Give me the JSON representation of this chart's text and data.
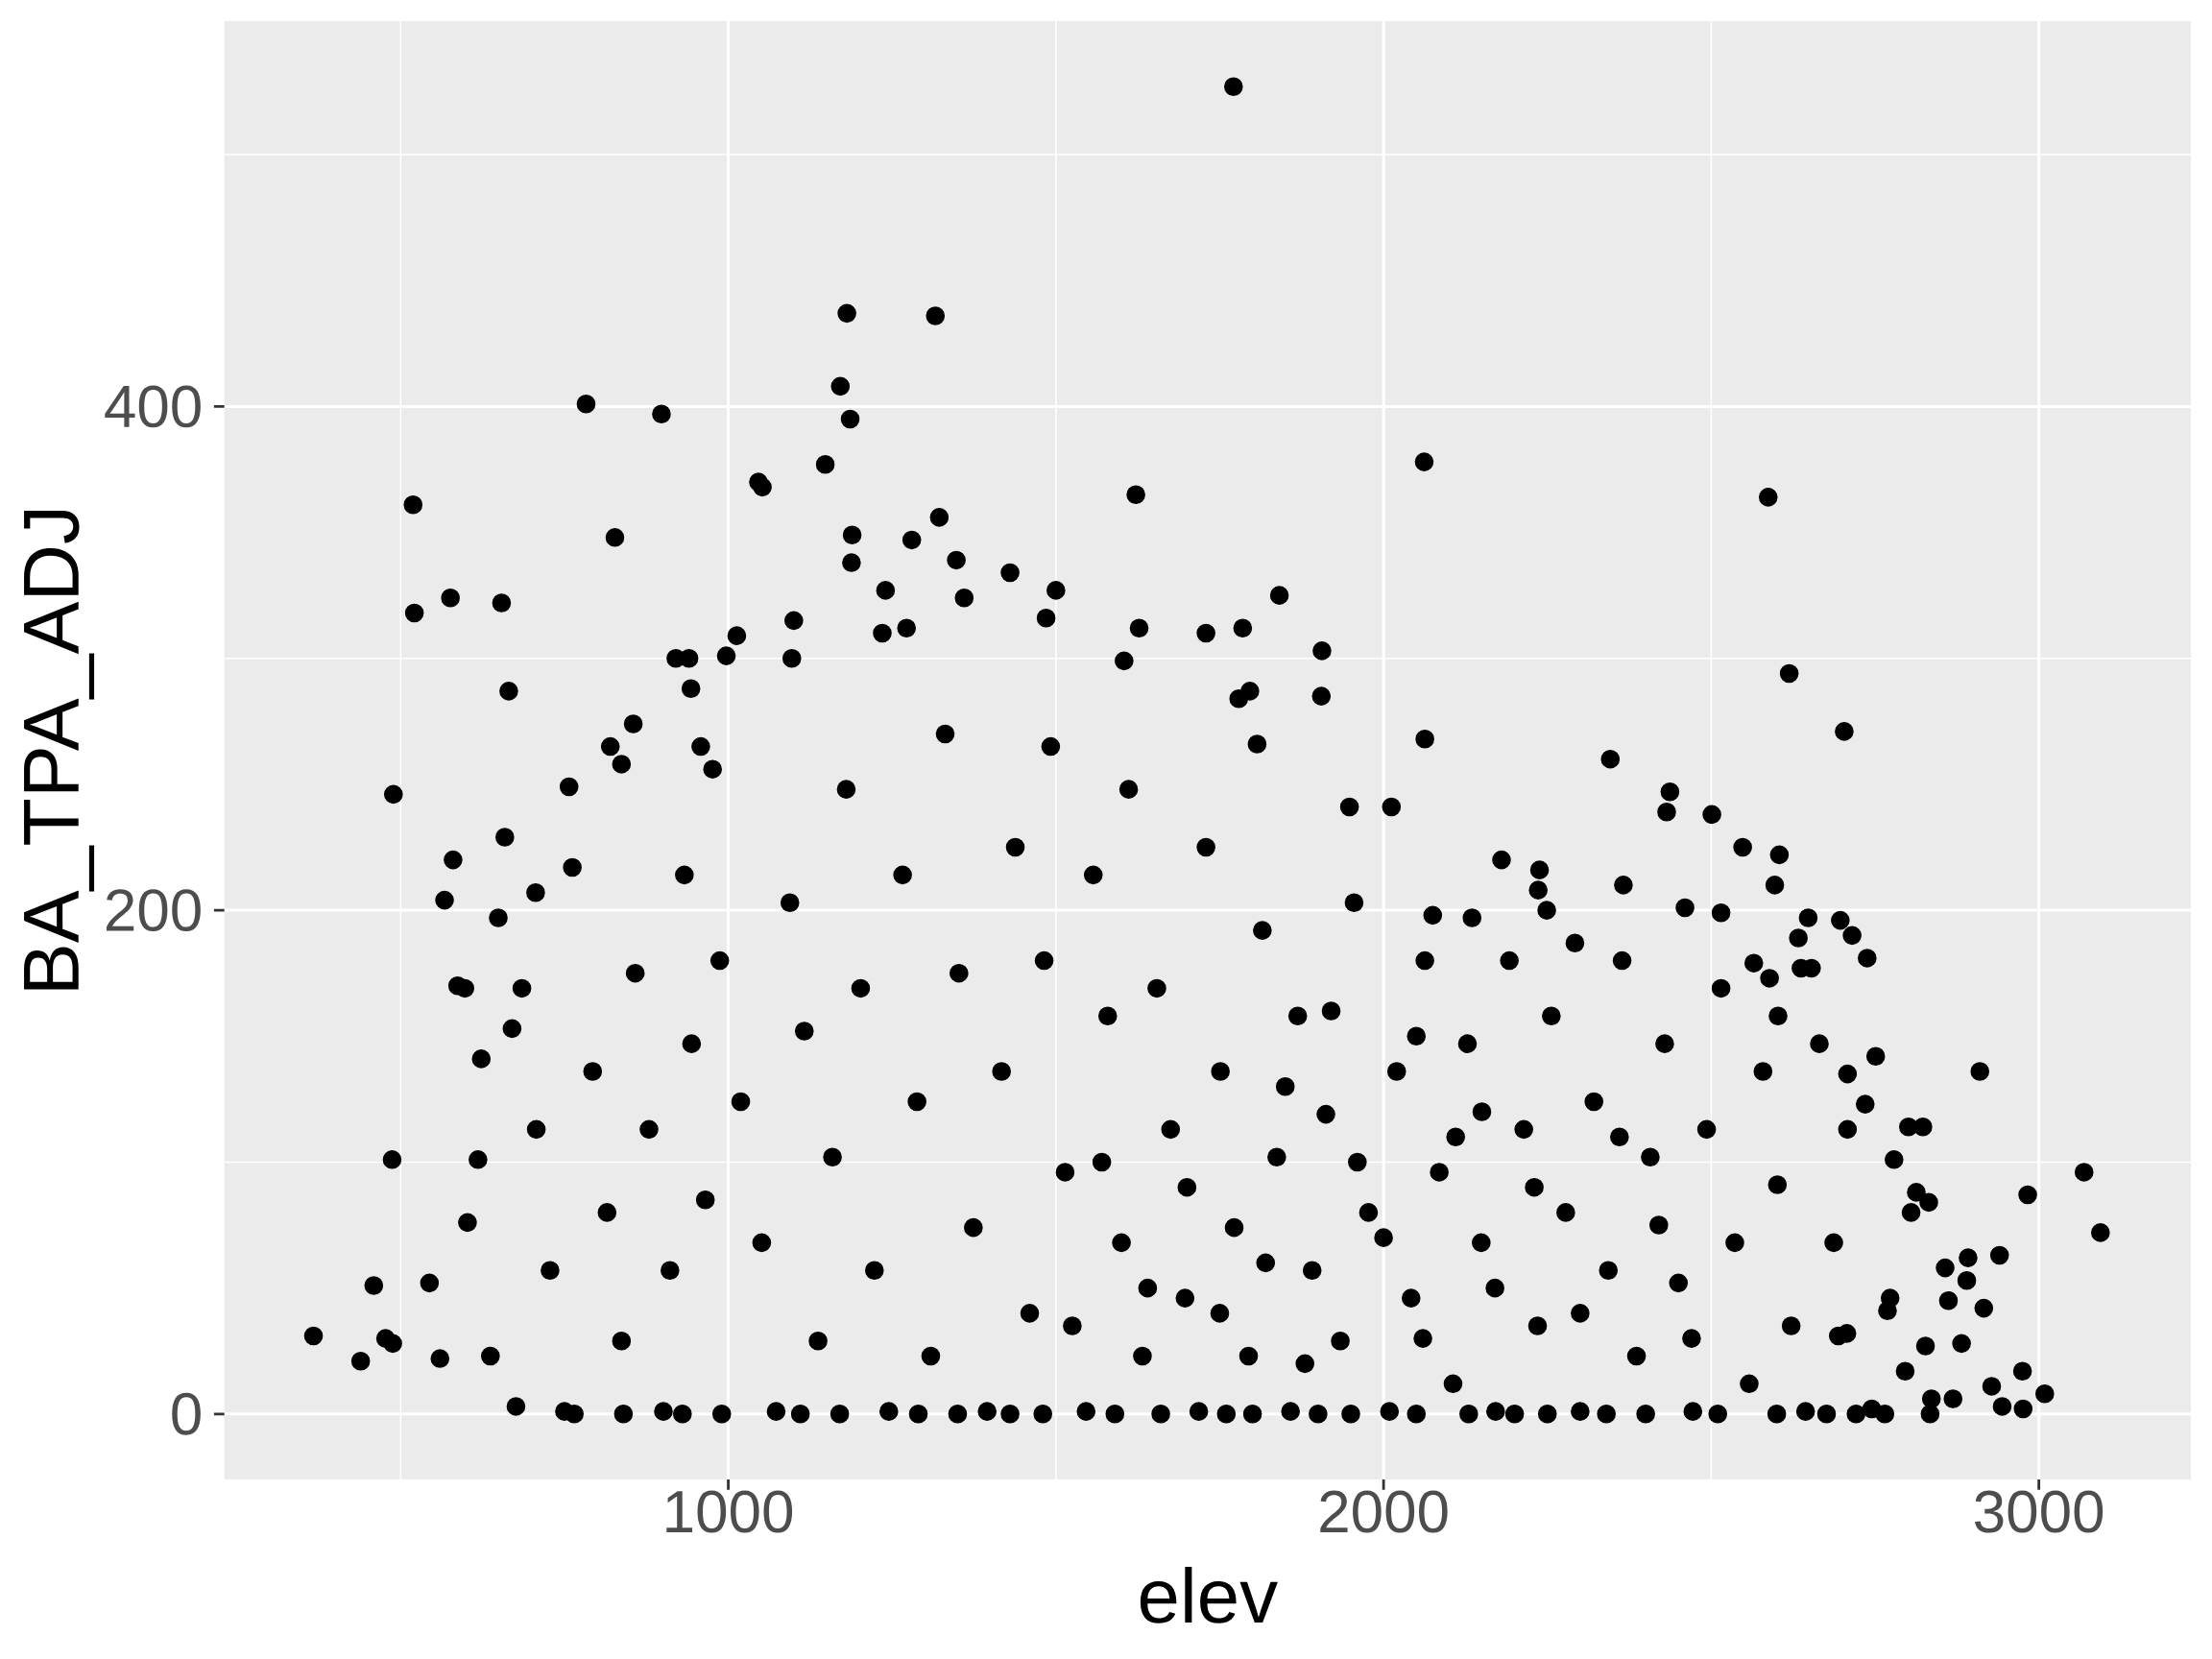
{
  "chart_data": {
    "type": "scatter",
    "xlabel": "elev",
    "ylabel": "BA_TPA_ADJ",
    "color": "#000000",
    "marker": "circle",
    "grid": true,
    "xlim": [
      231,
      3232
    ],
    "ylim": [
      -26,
      553
    ],
    "xticks": [
      {
        "value": 500,
        "label": null
      },
      1000,
      {
        "value": 1500,
        "label": null
      },
      2000,
      {
        "value": 2500,
        "label": null
      },
      3000
    ],
    "yticks": [
      0,
      {
        "value": 100,
        "label": null
      },
      200,
      {
        "value": 300,
        "label": null
      },
      400,
      {
        "value": 500,
        "label": null
      }
    ],
    "x": [
      1771,
      1181,
      1316,
      1171,
      1186,
      783,
      898,
      1148,
      1046,
      1052,
      519,
      827,
      521,
      576,
      654,
      665,
      489,
      487,
      367,
      439,
      459,
      477,
      488,
      544,
      560,
      567,
      580,
      587,
      598,
      618,
      649,
      659,
      706,
      757,
      762,
      623,
      670,
      602,
      637,
      676,
      765,
      840,
      2587,
      2619,
      2703,
      2346,
      2062,
      2063,
      1622,
      1841,
      1322,
      1189,
      1188,
      1280,
      1348,
      1430,
      1500,
      1485,
      1627,
      1729,
      1785,
      1906,
      1905,
      1360,
      1240,
      1100,
      1097,
      1235,
      1272,
      1013,
      920,
      940,
      943,
      3069,
      3094,
      2983,
      2910,
      3009,
      2976,
      2975,
      2940,
      2916,
      2892,
      2890,
      2882,
      2944,
      2928,
      2862,
      2857,
      2823,
      2801,
      2832,
      2813,
      2805,
      2779,
      2751,
      2735,
      2708,
      2738,
      2715,
      2697,
      2648,
      2633,
      2637,
      2653,
      2589,
      2565,
      2515,
      2501,
      2437,
      2432,
      2548,
      2604,
      2597,
      2366,
      2460,
      2292,
      2238,
      2236,
      2249,
      2602,
      2694,
      2707,
      2796,
      2836,
      2834,
      2869,
      2765,
      2827,
      2773,
      2769,
      2745,
      2721,
      2676,
      1492,
      1604,
      1779,
      1796,
      1807,
      1948,
      2012,
      2075,
      2135,
      2180,
      820,
      837,
      855,
      997,
      958,
      976,
      685,
      707,
      728,
      750,
      793,
      815,
      837,
      858,
      879,
      901,
      911,
      933,
      944,
      965,
      987,
      1019,
      1051,
      1073,
      1094,
      1116,
      1137,
      1159,
      1180,
      1202,
      1223,
      1245,
      1266,
      1288,
      1309,
      1331,
      1352,
      1374,
      1395,
      1417,
      1438,
      1460,
      1482,
      1514,
      1525,
      1546,
      1557,
      1579,
      1600,
      1611,
      1632,
      1654,
      1675,
      1697,
      1718,
      1729,
      1751,
      1772,
      1794,
      1815,
      1837,
      1858,
      1869,
      1891,
      1912,
      1934,
      1955,
      1977,
      2009,
      2020,
      2042,
      2063,
      2085,
      2106,
      2128,
      2149,
      2171,
      2192,
      2214,
      2235,
      2256,
      2278,
      2300,
      2321,
      2343,
      2364,
      2386,
      2407,
      2429,
      2450,
      2472,
      2493,
      2515,
      2536,
      2558,
      2579,
      2601,
      2622,
      2644,
      2665,
      2687,
      2708,
      930,
      990,
      1110,
      1170,
      1290,
      1350,
      1430,
      1480,
      1590,
      1660,
      1760,
      1800,
      1900,
      1950,
      2050,
      2130,
      2200,
      2250,
      2340,
      2400,
      2510,
      2600,
      1750,
      1820,
      1880,
      1960,
      2000,
      2060,
      2110,
      2170,
      2230,
      2300,
      2360,
      2420,
      2470,
      1700,
      1640,
      1570,
      1850,
      1920,
      2050,
      2150
    ],
    "values": [
      527,
      437,
      436,
      408,
      395,
      401,
      397,
      377,
      370,
      368,
      361,
      348,
      318,
      324,
      322,
      287,
      246,
      101,
      31,
      21,
      51,
      30,
      28,
      52,
      22,
      204,
      220,
      170,
      169,
      101,
      197,
      229,
      207,
      249,
      217,
      141,
      153,
      76,
      23,
      3,
      0,
      0,
      364,
      294,
      271,
      260,
      378,
      268,
      365,
      325,
      356,
      349,
      338,
      347,
      339,
      334,
      327,
      316,
      312,
      310,
      312,
      303,
      285,
      324,
      327,
      315,
      300,
      310,
      312,
      309,
      300,
      300,
      288,
      96,
      72,
      87,
      136,
      8,
      2,
      17,
      63,
      42,
      62,
      53,
      28,
      3,
      11,
      45,
      58,
      114,
      114,
      84,
      88,
      80,
      101,
      142,
      123,
      135,
      181,
      190,
      196,
      197,
      189,
      177,
      177,
      173,
      179,
      199,
      238,
      247,
      239,
      225,
      222,
      210,
      210,
      201,
      187,
      216,
      208,
      200,
      158,
      31,
      32,
      17,
      6,
      0,
      6,
      0,
      27,
      46,
      41,
      2,
      0,
      0,
      265,
      299,
      284,
      287,
      266,
      241,
      241,
      198,
      197,
      220,
      265,
      258,
      274,
      301,
      265,
      256,
      169,
      113,
      57,
      1,
      136,
      80,
      29,
      175,
      113,
      1,
      57,
      214,
      147,
      85,
      180,
      124,
      68,
      1,
      203,
      152,
      29,
      102,
      248,
      169,
      57,
      1,
      214,
      124,
      23,
      270,
      175,
      74,
      1,
      136,
      225,
      40,
      180,
      96,
      35,
      1,
      214,
      158,
      68,
      248,
      23,
      169,
      113,
      46,
      1,
      225,
      136,
      74,
      23,
      192,
      102,
      1,
      158,
      57,
      119,
      29,
      203,
      80,
      1,
      136,
      46,
      180,
      96,
      12,
      147,
      68,
      1,
      180,
      113,
      35,
      158,
      80,
      1,
      124,
      57,
      180,
      23,
      102,
      147,
      52,
      1,
      113,
      169,
      68,
      12,
      136,
      91,
      35,
      1,
      147,
      68,
      113,
      0,
      0,
      0,
      0,
      0,
      0,
      0,
      0,
      0,
      0,
      0,
      0,
      0,
      0,
      0,
      0,
      0,
      0,
      0,
      0,
      0,
      0,
      40,
      60,
      20,
      100,
      70,
      30,
      110,
      50,
      90,
      40,
      110,
      75,
      30,
      90,
      50,
      100,
      130,
      160,
      150,
      120
    ]
  }
}
